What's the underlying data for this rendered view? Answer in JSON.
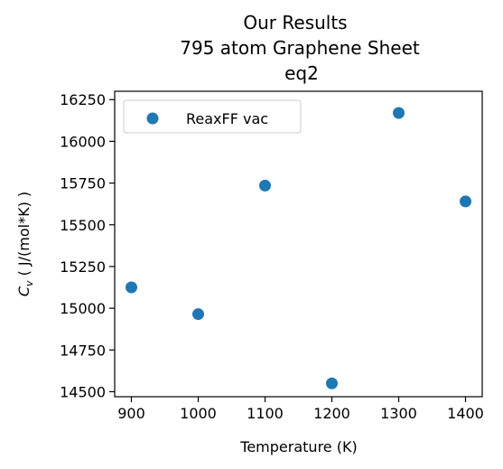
{
  "chart_data": {
    "type": "scatter",
    "title_lines": [
      "Our Results",
      "795 atom Graphene Sheet",
      "eq2"
    ],
    "xlabel": "Temperature (K)",
    "ylabel_prefix": "C",
    "ylabel_sub": "v",
    "ylabel_suffix": " ( J/(mol*K) )",
    "xlim": [
      875,
      1425
    ],
    "ylim": [
      14470,
      16300
    ],
    "xticks": [
      900,
      1000,
      1100,
      1200,
      1300,
      1400
    ],
    "yticks": [
      14500,
      14750,
      15000,
      15250,
      15500,
      15750,
      16000,
      16250
    ],
    "legend_position": "upper-left",
    "series": [
      {
        "name": "ReaxFF vac",
        "color": "#1f77b4",
        "x": [
          900,
          1000,
          1100,
          1200,
          1300,
          1400
        ],
        "y": [
          15125,
          14965,
          15735,
          14550,
          16170,
          15640
        ]
      }
    ]
  }
}
